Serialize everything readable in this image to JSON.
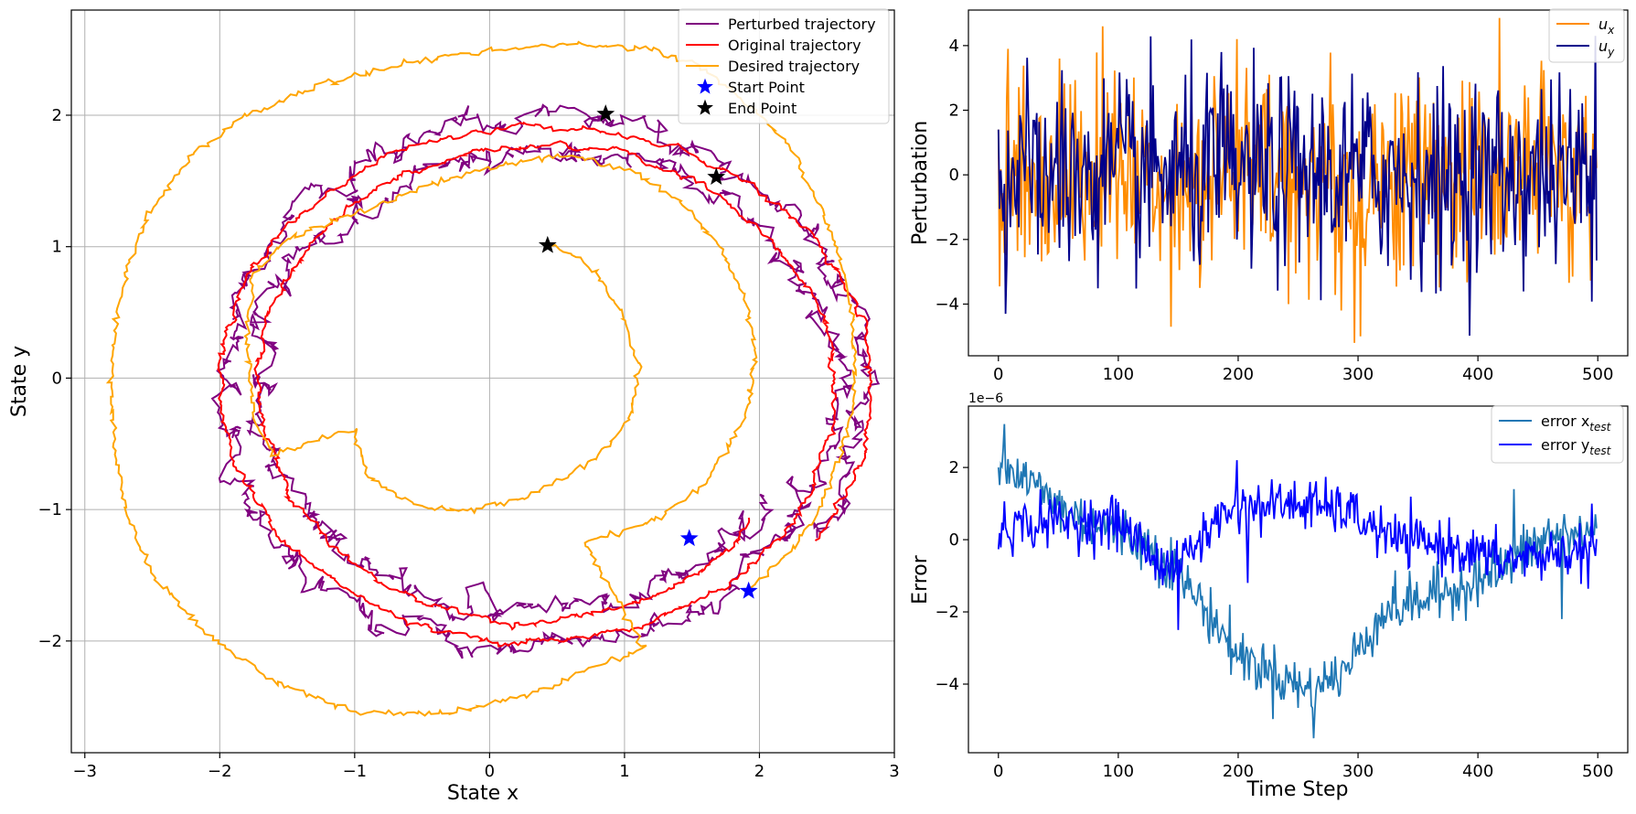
{
  "chart_data": [
    {
      "type": "line",
      "xlabel": "State x",
      "ylabel": "State y",
      "xlim": [
        -3.1,
        3.0
      ],
      "ylim": [
        -2.85,
        2.8
      ],
      "xticks": [
        -3,
        -2,
        -1,
        0,
        1,
        2,
        3
      ],
      "yticks": [
        -2,
        -1,
        0,
        1,
        2
      ],
      "xtick_labels": [
        "−3",
        "−2",
        "−1",
        "0",
        "1",
        "2",
        "3"
      ],
      "ytick_labels": [
        "−2",
        "−1",
        "0",
        "1",
        "2"
      ],
      "grid": true,
      "legend_position": "top-right",
      "series": [
        {
          "name": "Perturbed trajectory",
          "color": "#800080",
          "kind": "orbit",
          "center": [
            0.35,
            -0.1
          ],
          "rx0": 2.45,
          "ry0": 2.2,
          "rx1": 1.95,
          "ry1": 1.65,
          "theta0": -0.55,
          "turns": 2,
          "noise": 0.035
        },
        {
          "name": "Original trajectory",
          "color": "#ff0000",
          "kind": "orbit",
          "center": [
            0.35,
            -0.08
          ],
          "rx0": 2.5,
          "ry0": 2.05,
          "rx1": 1.95,
          "ry1": 1.75,
          "theta0": -0.6,
          "turns": 2,
          "noise": 0.01
        },
        {
          "name": "Desired trajectory",
          "color": "#ffa500",
          "kind": "polyline",
          "points": [
            [
              1.92,
              -1.62
            ],
            [
              2.25,
              -1.3
            ],
            [
              2.45,
              -1.0
            ],
            [
              2.6,
              -0.6
            ],
            [
              2.7,
              -0.2
            ],
            [
              2.7,
              0.4
            ],
            [
              2.6,
              0.9
            ],
            [
              2.45,
              1.3
            ],
            [
              2.2,
              1.8
            ],
            [
              1.9,
              2.1
            ],
            [
              1.6,
              2.35
            ],
            [
              1.2,
              2.5
            ],
            [
              0.6,
              2.55
            ],
            [
              0.0,
              2.5
            ],
            [
              -0.6,
              2.4
            ],
            [
              -1.2,
              2.25
            ],
            [
              -1.8,
              2.0
            ],
            [
              -2.2,
              1.7
            ],
            [
              -2.5,
              1.3
            ],
            [
              -2.7,
              0.8
            ],
            [
              -2.8,
              0.2
            ],
            [
              -2.8,
              -0.4
            ],
            [
              -2.7,
              -1.0
            ],
            [
              -2.5,
              -1.5
            ],
            [
              -2.1,
              -1.95
            ],
            [
              -1.6,
              -2.3
            ],
            [
              -1.0,
              -2.55
            ],
            [
              -0.3,
              -2.55
            ],
            [
              0.3,
              -2.4
            ],
            [
              0.8,
              -2.2
            ],
            [
              1.15,
              -2.05
            ],
            [
              0.7,
              -1.25
            ],
            [
              1.2,
              -1.1
            ],
            [
              1.6,
              -0.8
            ],
            [
              1.9,
              -0.3
            ],
            [
              1.97,
              0.2
            ],
            [
              1.9,
              0.6
            ],
            [
              1.7,
              1.0
            ],
            [
              1.4,
              1.35
            ],
            [
              1.0,
              1.6
            ],
            [
              0.5,
              1.7
            ],
            [
              0.0,
              1.6
            ],
            [
              -0.5,
              1.45
            ],
            [
              -1.0,
              1.25
            ],
            [
              -1.5,
              1.05
            ],
            [
              -1.75,
              0.8
            ],
            [
              -1.8,
              0.3
            ],
            [
              -1.75,
              -0.3
            ],
            [
              -1.6,
              -0.58
            ],
            [
              -1.0,
              -0.38
            ],
            [
              -0.9,
              -0.75
            ],
            [
              -0.6,
              -0.95
            ],
            [
              -0.2,
              -1.02
            ],
            [
              0.3,
              -0.9
            ],
            [
              0.8,
              -0.6
            ],
            [
              1.05,
              -0.3
            ],
            [
              1.1,
              0.1
            ],
            [
              1.0,
              0.45
            ],
            [
              0.8,
              0.8
            ],
            [
              0.6,
              0.95
            ],
            [
              0.43,
              1.01
            ]
          ],
          "noise": 0.012
        },
        {
          "name": "Start Point",
          "color": "#0000ff",
          "kind": "markers",
          "points": [
            [
              1.48,
              -1.22
            ],
            [
              1.92,
              -1.62
            ]
          ]
        },
        {
          "name": "End Point",
          "color": "#000000",
          "kind": "markers",
          "points": [
            [
              0.86,
              2.01
            ],
            [
              1.68,
              1.53
            ],
            [
              0.43,
              1.01
            ]
          ],
          "facecolors": [
            "#000000",
            "#000000",
            "#ffa500"
          ]
        }
      ]
    },
    {
      "type": "line",
      "xlabel": "",
      "ylabel": "Perturbation",
      "xlim": [
        -25,
        525
      ],
      "ylim": [
        -5.6,
        5.1
      ],
      "xticks": [
        0,
        100,
        200,
        300,
        400,
        500
      ],
      "yticks": [
        -4,
        -2,
        0,
        2,
        4
      ],
      "xtick_labels": [
        "0",
        "100",
        "200",
        "300",
        "400",
        "500"
      ],
      "ytick_labels": [
        "−4",
        "−2",
        "0",
        "2",
        "4"
      ],
      "grid": false,
      "legend_position": "top-right",
      "series": [
        {
          "name": "u_x",
          "legend_main": "u",
          "legend_sub": "x",
          "color": "#ff8c00",
          "n": 500,
          "model": "noise",
          "std": 1.6,
          "first": 1.4,
          "spikes": [
            [
              8,
              3.9
            ],
            [
              87,
              4.6
            ],
            [
              199,
              4.2
            ],
            [
              297,
              -5.2
            ],
            [
              302,
              -5.0
            ],
            [
              286,
              -4.2
            ],
            [
              242,
              -4.0
            ]
          ]
        },
        {
          "name": "u_y",
          "legend_main": "u",
          "legend_sub": "y",
          "color": "#00008b",
          "n": 500,
          "model": "noise",
          "std": 1.5,
          "first": 1.4,
          "spikes": [
            [
              6,
              -4.3
            ],
            [
              186,
              3.8
            ],
            [
              498,
              4.3
            ],
            [
              369,
              -3.6
            ]
          ]
        }
      ]
    },
    {
      "type": "line",
      "xlabel": "Time Step",
      "ylabel": "Error",
      "offset_text": "1e−6",
      "xlim": [
        -25,
        525
      ],
      "ylim": [
        -5.9,
        3.7
      ],
      "xticks": [
        0,
        100,
        200,
        300,
        400,
        500
      ],
      "yticks": [
        -4,
        -2,
        0,
        2
      ],
      "xtick_labels": [
        "0",
        "100",
        "200",
        "300",
        "400",
        "500"
      ],
      "ytick_labels": [
        "−4",
        "−2",
        "0",
        "2"
      ],
      "grid": false,
      "legend_position": "top-right",
      "series": [
        {
          "name": "error x_test",
          "legend_main": "error x",
          "legend_sub": "test",
          "color": "#1f77b4",
          "n": 500,
          "model": "trend",
          "trend": [
            [
              0,
              2.2
            ],
            [
              30,
              1.5
            ],
            [
              60,
              0.7
            ],
            [
              100,
              0.3
            ],
            [
              140,
              -0.5
            ],
            [
              170,
              -1.8
            ],
            [
              200,
              -3.2
            ],
            [
              230,
              -3.7
            ],
            [
              260,
              -4.2
            ],
            [
              290,
              -3.6
            ],
            [
              320,
              -2.0
            ],
            [
              370,
              -1.5
            ],
            [
              420,
              -0.8
            ],
            [
              460,
              0.1
            ],
            [
              499,
              0.2
            ]
          ],
          "std": 0.38,
          "spikes": [
            [
              5,
              3.2
            ],
            [
              263,
              -5.5
            ],
            [
              470,
              -2.2
            ],
            [
              430,
              1.4
            ],
            [
              0,
              2.0
            ]
          ]
        },
        {
          "name": "error y_test",
          "legend_main": "error y",
          "legend_sub": "test",
          "color": "#0000ff",
          "n": 500,
          "model": "trend",
          "trend": [
            [
              0,
              0.3
            ],
            [
              40,
              0.5
            ],
            [
              100,
              0.5
            ],
            [
              140,
              -0.8
            ],
            [
              160,
              -0.3
            ],
            [
              190,
              0.8
            ],
            [
              240,
              1.0
            ],
            [
              290,
              0.8
            ],
            [
              330,
              0.0
            ],
            [
              380,
              -0.2
            ],
            [
              420,
              -0.6
            ],
            [
              460,
              -0.4
            ],
            [
              499,
              -0.3
            ]
          ],
          "std": 0.35,
          "spikes": [
            [
              150,
              -2.5
            ],
            [
              199,
              2.2
            ],
            [
              208,
              -1.2
            ],
            [
              260,
              1.6
            ],
            [
              495,
              1.0
            ]
          ]
        }
      ]
    }
  ]
}
